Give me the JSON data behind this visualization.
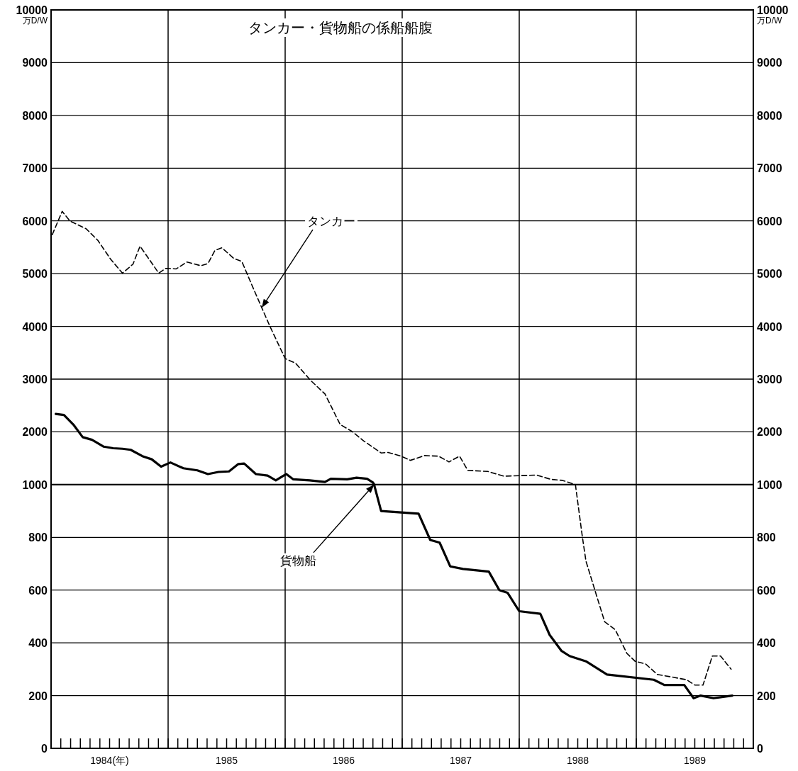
{
  "chart_data": [
    {
      "type": "line",
      "title": "タンカー・貨物船の係船船腹",
      "ylabel": "万D/W",
      "y2label": "万D/W",
      "xlim": [
        1984,
        1990
      ],
      "tick_labels": "y",
      "ylim": [
        1000,
        10000
      ],
      "yticks": [
        1000,
        2000,
        3000,
        4000,
        5000,
        6000,
        7000,
        8000,
        9000,
        10000
      ],
      "y2lim": [
        1000,
        10000
      ],
      "y2ticks": [
        1000,
        2000,
        3000,
        4000,
        5000,
        6000,
        7000,
        8000,
        9000,
        10000
      ],
      "grid": "y",
      "marker": "none",
      "ref_lines": [
        {
          "axis": "x",
          "value": 1985
        },
        {
          "axis": "x",
          "value": 1986
        },
        {
          "axis": "x",
          "value": 1987
        },
        {
          "axis": "x",
          "value": 1988
        },
        {
          "axis": "x",
          "value": 1989
        }
      ],
      "series": [
        {
          "color": "#000000",
          "line_style": "dashed",
          "x": [
            1984.01,
            1984.095,
            1984.16,
            1984.3,
            1984.4,
            1984.51,
            1984.61,
            1984.7,
            1984.76,
            1984.92,
            1984.98,
            1985.07,
            1985.16,
            1985.28,
            1985.34,
            1985.4,
            1985.46,
            1985.56,
            1985.63,
            1985.73,
            1985.87,
            1986.0,
            1986.09,
            1986.22,
            1986.34,
            1986.47,
            1986.57,
            1986.67,
            1986.82,
            1986.88,
            1986.99,
            1987.07,
            1987.19,
            1987.31,
            1987.4,
            1987.49,
            1987.56,
            1987.73,
            1987.87,
            1988.01,
            1988.15,
            1988.27,
            1988.37,
            1988.48
          ],
          "values": [
            5740,
            6180,
            6000,
            5850,
            5630,
            5270,
            5010,
            5180,
            5520,
            5010,
            5100,
            5090,
            5220,
            5150,
            5190,
            5440,
            5490,
            5290,
            5230,
            4710,
            4000,
            3390,
            3300,
            2970,
            2720,
            2140,
            2010,
            1830,
            1600,
            1610,
            1540,
            1460,
            1550,
            1540,
            1430,
            1540,
            1270,
            1250,
            1160,
            1170,
            1180,
            1100,
            1080,
            1000
          ]
        },
        {
          "color": "#000000",
          "line_style": "solid",
          "x": [
            1984.04,
            1984.11,
            1984.19,
            1984.27,
            1984.35,
            1984.45,
            1984.53,
            1984.61,
            1984.68,
            1984.78,
            1984.86,
            1984.94,
            1985.02,
            1985.13,
            1985.25,
            1985.34,
            1985.43,
            1985.52,
            1985.6,
            1985.65,
            1985.75,
            1985.85,
            1985.92,
            1986.01,
            1986.07,
            1986.21,
            1986.34,
            1986.39,
            1986.53,
            1986.61,
            1986.7,
            1986.75,
            1986.76
          ],
          "values": [
            2340,
            2320,
            2140,
            1900,
            1850,
            1720,
            1690,
            1680,
            1660,
            1540,
            1480,
            1340,
            1420,
            1310,
            1270,
            1200,
            1240,
            1250,
            1390,
            1400,
            1200,
            1170,
            1080,
            1200,
            1100,
            1080,
            1050,
            1110,
            1100,
            1130,
            1110,
            1040,
            1000
          ]
        }
      ],
      "annotations": [
        "タンカー"
      ]
    },
    {
      "type": "line",
      "xlim": [
        1984,
        1990
      ],
      "xticks": [
        {
          "value": 1984.083,
          "label": null
        },
        {
          "value": 1984.167,
          "label": null
        },
        {
          "value": 1984.25,
          "label": null
        },
        {
          "value": 1984.333,
          "label": null
        },
        {
          "value": 1984.417,
          "label": null
        },
        {
          "value": 1984.5,
          "label": "1984(年)"
        },
        {
          "value": 1984.583,
          "label": null
        },
        {
          "value": 1984.667,
          "label": null
        },
        {
          "value": 1984.75,
          "label": null
        },
        {
          "value": 1984.833,
          "label": null
        },
        {
          "value": 1984.917,
          "label": null
        },
        {
          "value": 1985,
          "label": null
        },
        {
          "value": 1985.083,
          "label": null
        },
        {
          "value": 1985.167,
          "label": null
        },
        {
          "value": 1985.25,
          "label": null
        },
        {
          "value": 1985.333,
          "label": null
        },
        {
          "value": 1985.417,
          "label": null
        },
        {
          "value": 1985.5,
          "label": "1985"
        },
        {
          "value": 1985.583,
          "label": null
        },
        {
          "value": 1985.667,
          "label": null
        },
        {
          "value": 1985.75,
          "label": null
        },
        {
          "value": 1985.833,
          "label": null
        },
        {
          "value": 1985.917,
          "label": null
        },
        {
          "value": 1986,
          "label": null
        },
        {
          "value": 1986.083,
          "label": null
        },
        {
          "value": 1986.167,
          "label": null
        },
        {
          "value": 1986.25,
          "label": null
        },
        {
          "value": 1986.333,
          "label": null
        },
        {
          "value": 1986.417,
          "label": null
        },
        {
          "value": 1986.5,
          "label": "1986"
        },
        {
          "value": 1986.583,
          "label": null
        },
        {
          "value": 1986.667,
          "label": null
        },
        {
          "value": 1986.75,
          "label": null
        },
        {
          "value": 1986.833,
          "label": null
        },
        {
          "value": 1986.917,
          "label": null
        },
        {
          "value": 1987,
          "label": null
        },
        {
          "value": 1987.083,
          "label": null
        },
        {
          "value": 1987.167,
          "label": null
        },
        {
          "value": 1987.25,
          "label": null
        },
        {
          "value": 1987.333,
          "label": null
        },
        {
          "value": 1987.417,
          "label": null
        },
        {
          "value": 1987.5,
          "label": "1987"
        },
        {
          "value": 1987.583,
          "label": null
        },
        {
          "value": 1987.667,
          "label": null
        },
        {
          "value": 1987.75,
          "label": null
        },
        {
          "value": 1987.833,
          "label": null
        },
        {
          "value": 1987.917,
          "label": null
        },
        {
          "value": 1988,
          "label": null
        },
        {
          "value": 1988.083,
          "label": null
        },
        {
          "value": 1988.167,
          "label": null
        },
        {
          "value": 1988.25,
          "label": null
        },
        {
          "value": 1988.333,
          "label": null
        },
        {
          "value": 1988.417,
          "label": null
        },
        {
          "value": 1988.5,
          "label": "1988"
        },
        {
          "value": 1988.583,
          "label": null
        },
        {
          "value": 1988.667,
          "label": null
        },
        {
          "value": 1988.75,
          "label": null
        },
        {
          "value": 1988.833,
          "label": null
        },
        {
          "value": 1988.917,
          "label": null
        },
        {
          "value": 1989,
          "label": null
        },
        {
          "value": 1989.083,
          "label": null
        },
        {
          "value": 1989.167,
          "label": null
        },
        {
          "value": 1989.25,
          "label": null
        },
        {
          "value": 1989.333,
          "label": null
        },
        {
          "value": 1989.417,
          "label": null
        },
        {
          "value": 1989.5,
          "label": "1989"
        },
        {
          "value": 1989.583,
          "label": null
        },
        {
          "value": 1989.667,
          "label": null
        },
        {
          "value": 1989.75,
          "label": null
        },
        {
          "value": 1989.833,
          "label": null
        },
        {
          "value": 1989.917,
          "label": null
        }
      ],
      "ylim": [
        0,
        1000
      ],
      "yticks": [
        0,
        200,
        400,
        600,
        800
      ],
      "y2lim": [
        0,
        1000
      ],
      "y2ticks": [
        0,
        200,
        400,
        600,
        800
      ],
      "grid": "y",
      "marker": "none",
      "ref_lines": [
        {
          "axis": "x",
          "value": 1985
        },
        {
          "axis": "x",
          "value": 1986
        },
        {
          "axis": "x",
          "value": 1987
        },
        {
          "axis": "x",
          "value": 1988
        },
        {
          "axis": "x",
          "value": 1989
        }
      ],
      "series": [
        {
          "color": "#000000",
          "line_style": "dashed",
          "x": [
            1988.48,
            1988.54,
            1988.57,
            1988.66,
            1988.73,
            1988.82,
            1988.92,
            1988.99,
            1989.08,
            1989.18,
            1989.31,
            1989.43,
            1989.5,
            1989.57,
            1989.65,
            1989.72,
            1989.81
          ],
          "values": [
            1000,
            800,
            710,
            580,
            480,
            450,
            360,
            330,
            320,
            280,
            270,
            260,
            240,
            240,
            350,
            350,
            300
          ]
        },
        {
          "color": "#000000",
          "line_style": "solid",
          "x": [
            1986.76,
            1986.82,
            1987.14,
            1987.24,
            1987.32,
            1987.41,
            1987.52,
            1987.74,
            1987.83,
            1987.9,
            1988.0,
            1988.18,
            1988.26,
            1988.36,
            1988.43,
            1988.57,
            1988.75,
            1989.15,
            1989.24,
            1989.41,
            1989.49,
            1989.55,
            1989.66,
            1989.82
          ],
          "values": [
            1000,
            900,
            890,
            790,
            780,
            690,
            680,
            670,
            600,
            590,
            520,
            510,
            430,
            370,
            350,
            330,
            280,
            260,
            240,
            240,
            190,
            200,
            190,
            200
          ]
        }
      ],
      "annotations": [
        "貨物船"
      ]
    }
  ]
}
